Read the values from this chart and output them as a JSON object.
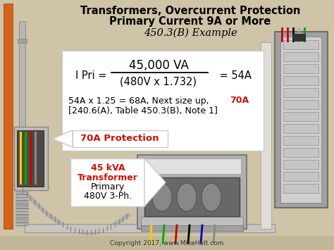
{
  "bg_color": "#cfc3a8",
  "title_line1": "Transformers, Overcurrent Protection",
  "title_line2": "Primary Current 9A or More",
  "title_line3": "450.3(B) Example",
  "formula_box_color": "#ffffff",
  "formula_numerator": "45,000 VA",
  "formula_denominator": "(480V x 1.732)",
  "formula_prefix": "I Pri = ",
  "formula_result": " = 54A",
  "calc_line1_black": "54A x 1.25 = 68A, Next size up, ",
  "calc_line1_red": "70A",
  "calc_line2": "[240.6(A), Table 450.3(B), Note 1]",
  "protect_box_color": "#ffffff",
  "protect_text": "70A Protection",
  "protect_text_color": "#cc1100",
  "xfmr_label_line1": "45 kVA",
  "xfmr_label_line2": "Transformer",
  "xfmr_label_line3": "Primary",
  "xfmr_label_line4": "480V 3-Ph.",
  "xfmr_label_color": "#cc1100",
  "copyright_text": "Copyright 2017, www.MikeHolt.com",
  "orange_color": "#d4631a",
  "conduit_light": "#d0cec8",
  "conduit_mid": "#b0aeaa"
}
